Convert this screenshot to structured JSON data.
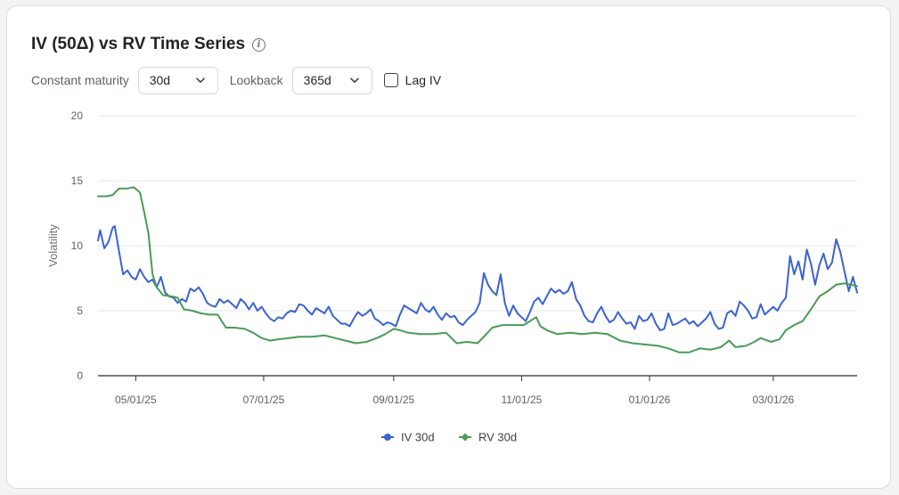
{
  "header": {
    "title": "IV (50Δ) vs RV Time Series",
    "info_icon": "info-icon"
  },
  "controls": {
    "maturity_label": "Constant maturity",
    "maturity_value": "30d",
    "lookback_label": "Lookback",
    "lookback_value": "365d",
    "lag_label": "Lag IV",
    "lag_checked": false
  },
  "chart_data": {
    "type": "line",
    "ylabel": "Volatility",
    "ylim": [
      0,
      20
    ],
    "yticks": [
      0,
      5,
      10,
      15,
      20
    ],
    "xlim": [
      "2025-04-13",
      "2026-04-10"
    ],
    "xticks": [
      {
        "label": "05/01/25",
        "date": "2025-05-01"
      },
      {
        "label": "07/01/25",
        "date": "2025-07-01"
      },
      {
        "label": "09/01/25",
        "date": "2025-09-01"
      },
      {
        "label": "11/01/25",
        "date": "2025-11-01"
      },
      {
        "label": "01/01/26",
        "date": "2026-01-01"
      },
      {
        "label": "03/01/26",
        "date": "2026-03-01"
      }
    ],
    "grid": true,
    "legend": "bottom-center",
    "series": [
      {
        "name": "IV 30d",
        "color": "#3a63d1",
        "points": [
          [
            "2025-04-13",
            10.4
          ],
          [
            "2025-04-14",
            11.2
          ],
          [
            "2025-04-16",
            9.8
          ],
          [
            "2025-04-18",
            10.3
          ],
          [
            "2025-04-20",
            11.4
          ],
          [
            "2025-04-21",
            11.5
          ],
          [
            "2025-04-23",
            9.6
          ],
          [
            "2025-04-25",
            7.8
          ],
          [
            "2025-04-27",
            8.1
          ],
          [
            "2025-04-29",
            7.6
          ],
          [
            "2025-05-01",
            7.4
          ],
          [
            "2025-05-03",
            8.2
          ],
          [
            "2025-05-05",
            7.6
          ],
          [
            "2025-05-07",
            7.2
          ],
          [
            "2025-05-09",
            7.4
          ],
          [
            "2025-05-11",
            6.8
          ],
          [
            "2025-05-13",
            7.6
          ],
          [
            "2025-05-15",
            6.4
          ],
          [
            "2025-05-17",
            6.1
          ],
          [
            "2025-05-19",
            6.0
          ],
          [
            "2025-05-21",
            5.6
          ],
          [
            "2025-05-23",
            5.9
          ],
          [
            "2025-05-25",
            5.7
          ],
          [
            "2025-05-27",
            6.7
          ],
          [
            "2025-05-29",
            6.5
          ],
          [
            "2025-05-31",
            6.8
          ],
          [
            "2025-06-02",
            6.3
          ],
          [
            "2025-06-04",
            5.6
          ],
          [
            "2025-06-06",
            5.4
          ],
          [
            "2025-06-08",
            5.3
          ],
          [
            "2025-06-10",
            5.9
          ],
          [
            "2025-06-12",
            5.6
          ],
          [
            "2025-06-14",
            5.8
          ],
          [
            "2025-06-16",
            5.5
          ],
          [
            "2025-06-18",
            5.2
          ],
          [
            "2025-06-20",
            5.9
          ],
          [
            "2025-06-22",
            5.6
          ],
          [
            "2025-06-24",
            5.1
          ],
          [
            "2025-06-26",
            5.6
          ],
          [
            "2025-06-28",
            5.0
          ],
          [
            "2025-06-30",
            5.3
          ],
          [
            "2025-07-02",
            4.8
          ],
          [
            "2025-07-04",
            4.4
          ],
          [
            "2025-07-06",
            4.2
          ],
          [
            "2025-07-08",
            4.5
          ],
          [
            "2025-07-10",
            4.4
          ],
          [
            "2025-07-12",
            4.8
          ],
          [
            "2025-07-14",
            5.0
          ],
          [
            "2025-07-16",
            4.9
          ],
          [
            "2025-07-18",
            5.5
          ],
          [
            "2025-07-20",
            5.4
          ],
          [
            "2025-07-22",
            5.0
          ],
          [
            "2025-07-24",
            4.7
          ],
          [
            "2025-07-26",
            5.2
          ],
          [
            "2025-07-28",
            5.0
          ],
          [
            "2025-07-30",
            4.8
          ],
          [
            "2025-08-01",
            5.3
          ],
          [
            "2025-08-03",
            4.6
          ],
          [
            "2025-08-05",
            4.3
          ],
          [
            "2025-08-07",
            4.0
          ],
          [
            "2025-08-09",
            4.0
          ],
          [
            "2025-08-11",
            3.8
          ],
          [
            "2025-08-13",
            4.4
          ],
          [
            "2025-08-15",
            4.9
          ],
          [
            "2025-08-17",
            4.6
          ],
          [
            "2025-08-19",
            4.8
          ],
          [
            "2025-08-21",
            5.1
          ],
          [
            "2025-08-23",
            4.4
          ],
          [
            "2025-08-25",
            4.2
          ],
          [
            "2025-08-27",
            3.9
          ],
          [
            "2025-08-29",
            4.1
          ],
          [
            "2025-08-31",
            4.0
          ],
          [
            "2025-09-02",
            3.8
          ],
          [
            "2025-09-04",
            4.7
          ],
          [
            "2025-09-06",
            5.4
          ],
          [
            "2025-09-08",
            5.2
          ],
          [
            "2025-09-10",
            5.0
          ],
          [
            "2025-09-12",
            4.8
          ],
          [
            "2025-09-14",
            5.6
          ],
          [
            "2025-09-16",
            5.1
          ],
          [
            "2025-09-18",
            4.9
          ],
          [
            "2025-09-20",
            5.3
          ],
          [
            "2025-09-22",
            4.7
          ],
          [
            "2025-09-24",
            4.3
          ],
          [
            "2025-09-26",
            4.8
          ],
          [
            "2025-09-28",
            4.5
          ],
          [
            "2025-09-30",
            4.6
          ],
          [
            "2025-10-02",
            4.1
          ],
          [
            "2025-10-04",
            3.9
          ],
          [
            "2025-10-06",
            4.3
          ],
          [
            "2025-10-08",
            4.6
          ],
          [
            "2025-10-10",
            4.9
          ],
          [
            "2025-10-12",
            5.6
          ],
          [
            "2025-10-14",
            7.9
          ],
          [
            "2025-10-16",
            7.0
          ],
          [
            "2025-10-18",
            6.5
          ],
          [
            "2025-10-20",
            6.2
          ],
          [
            "2025-10-22",
            7.8
          ],
          [
            "2025-10-24",
            5.6
          ],
          [
            "2025-10-26",
            4.6
          ],
          [
            "2025-10-28",
            5.4
          ],
          [
            "2025-10-30",
            4.8
          ],
          [
            "2025-11-01",
            4.5
          ],
          [
            "2025-11-03",
            4.2
          ],
          [
            "2025-11-05",
            4.9
          ],
          [
            "2025-11-07",
            5.7
          ],
          [
            "2025-11-09",
            6.0
          ],
          [
            "2025-11-11",
            5.5
          ],
          [
            "2025-11-13",
            6.1
          ],
          [
            "2025-11-15",
            6.7
          ],
          [
            "2025-11-17",
            6.4
          ],
          [
            "2025-11-19",
            6.6
          ],
          [
            "2025-11-21",
            6.3
          ],
          [
            "2025-11-23",
            6.5
          ],
          [
            "2025-11-25",
            7.2
          ],
          [
            "2025-11-27",
            5.9
          ],
          [
            "2025-11-29",
            5.4
          ],
          [
            "2025-12-01",
            4.6
          ],
          [
            "2025-12-03",
            4.2
          ],
          [
            "2025-12-05",
            4.1
          ],
          [
            "2025-12-07",
            4.8
          ],
          [
            "2025-12-09",
            5.3
          ],
          [
            "2025-12-11",
            4.6
          ],
          [
            "2025-12-13",
            4.1
          ],
          [
            "2025-12-15",
            4.3
          ],
          [
            "2025-12-17",
            4.9
          ],
          [
            "2025-12-19",
            4.4
          ],
          [
            "2025-12-21",
            4.0
          ],
          [
            "2025-12-23",
            4.1
          ],
          [
            "2025-12-25",
            3.6
          ],
          [
            "2025-12-27",
            4.6
          ],
          [
            "2025-12-29",
            4.2
          ],
          [
            "2025-12-31",
            4.3
          ],
          [
            "2026-01-02",
            4.8
          ],
          [
            "2026-01-04",
            4.0
          ],
          [
            "2026-01-06",
            3.5
          ],
          [
            "2026-01-08",
            3.6
          ],
          [
            "2026-01-10",
            4.8
          ],
          [
            "2026-01-12",
            3.9
          ],
          [
            "2026-01-14",
            4.0
          ],
          [
            "2026-01-16",
            4.2
          ],
          [
            "2026-01-18",
            4.4
          ],
          [
            "2026-01-20",
            4.0
          ],
          [
            "2026-01-22",
            4.2
          ],
          [
            "2026-01-24",
            3.8
          ],
          [
            "2026-01-26",
            4.1
          ],
          [
            "2026-01-28",
            4.4
          ],
          [
            "2026-01-30",
            4.9
          ],
          [
            "2026-02-01",
            4.0
          ],
          [
            "2026-02-03",
            3.6
          ],
          [
            "2026-02-05",
            3.7
          ],
          [
            "2026-02-07",
            4.8
          ],
          [
            "2026-02-09",
            5.0
          ],
          [
            "2026-02-11",
            4.6
          ],
          [
            "2026-02-13",
            5.7
          ],
          [
            "2026-02-15",
            5.4
          ],
          [
            "2026-02-17",
            5.0
          ],
          [
            "2026-02-19",
            4.4
          ],
          [
            "2026-02-21",
            4.5
          ],
          [
            "2026-02-23",
            5.5
          ],
          [
            "2026-02-25",
            4.7
          ],
          [
            "2026-02-27",
            5.0
          ],
          [
            "2026-03-01",
            5.3
          ],
          [
            "2026-03-03",
            5.0
          ],
          [
            "2026-03-05",
            5.6
          ],
          [
            "2026-03-07",
            6.0
          ],
          [
            "2026-03-09",
            9.2
          ],
          [
            "2026-03-11",
            7.8
          ],
          [
            "2026-03-13",
            8.8
          ],
          [
            "2026-03-15",
            7.4
          ],
          [
            "2026-03-17",
            9.7
          ],
          [
            "2026-03-19",
            8.6
          ],
          [
            "2026-03-21",
            7.0
          ],
          [
            "2026-03-23",
            8.5
          ],
          [
            "2026-03-25",
            9.4
          ],
          [
            "2026-03-27",
            8.2
          ],
          [
            "2026-03-29",
            8.7
          ],
          [
            "2026-03-31",
            10.5
          ],
          [
            "2026-04-02",
            9.5
          ],
          [
            "2026-04-04",
            8.0
          ],
          [
            "2026-04-06",
            6.5
          ],
          [
            "2026-04-08",
            7.6
          ],
          [
            "2026-04-10",
            6.4
          ]
        ]
      },
      {
        "name": "RV 30d",
        "color": "#4a9b57",
        "points": [
          [
            "2025-04-13",
            13.8
          ],
          [
            "2025-04-17",
            13.8
          ],
          [
            "2025-04-20",
            13.9
          ],
          [
            "2025-04-23",
            14.4
          ],
          [
            "2025-04-27",
            14.4
          ],
          [
            "2025-04-30",
            14.5
          ],
          [
            "2025-05-03",
            14.1
          ],
          [
            "2025-05-05",
            12.6
          ],
          [
            "2025-05-07",
            11.0
          ],
          [
            "2025-05-09",
            7.8
          ],
          [
            "2025-05-11",
            6.8
          ],
          [
            "2025-05-14",
            6.2
          ],
          [
            "2025-05-18",
            6.1
          ],
          [
            "2025-05-21",
            6.0
          ],
          [
            "2025-05-24",
            5.1
          ],
          [
            "2025-05-28",
            5.0
          ],
          [
            "2025-06-01",
            4.8
          ],
          [
            "2025-06-05",
            4.7
          ],
          [
            "2025-06-09",
            4.7
          ],
          [
            "2025-06-13",
            3.7
          ],
          [
            "2025-06-17",
            3.7
          ],
          [
            "2025-06-22",
            3.6
          ],
          [
            "2025-06-26",
            3.3
          ],
          [
            "2025-06-30",
            2.9
          ],
          [
            "2025-07-04",
            2.7
          ],
          [
            "2025-07-08",
            2.8
          ],
          [
            "2025-07-13",
            2.9
          ],
          [
            "2025-07-18",
            3.0
          ],
          [
            "2025-07-24",
            3.0
          ],
          [
            "2025-07-30",
            3.1
          ],
          [
            "2025-08-04",
            2.9
          ],
          [
            "2025-08-09",
            2.7
          ],
          [
            "2025-08-14",
            2.5
          ],
          [
            "2025-08-19",
            2.6
          ],
          [
            "2025-08-24",
            2.9
          ],
          [
            "2025-08-28",
            3.2
          ],
          [
            "2025-09-01",
            3.6
          ],
          [
            "2025-09-04",
            3.5
          ],
          [
            "2025-09-08",
            3.3
          ],
          [
            "2025-09-14",
            3.2
          ],
          [
            "2025-09-20",
            3.2
          ],
          [
            "2025-09-26",
            3.3
          ],
          [
            "2025-10-01",
            2.5
          ],
          [
            "2025-10-06",
            2.6
          ],
          [
            "2025-10-11",
            2.5
          ],
          [
            "2025-10-14",
            3.0
          ],
          [
            "2025-10-18",
            3.7
          ],
          [
            "2025-10-23",
            3.9
          ],
          [
            "2025-10-28",
            3.9
          ],
          [
            "2025-11-02",
            3.9
          ],
          [
            "2025-11-06",
            4.3
          ],
          [
            "2025-11-08",
            4.5
          ],
          [
            "2025-11-10",
            3.8
          ],
          [
            "2025-11-13",
            3.5
          ],
          [
            "2025-11-18",
            3.2
          ],
          [
            "2025-11-24",
            3.3
          ],
          [
            "2025-11-30",
            3.2
          ],
          [
            "2025-12-06",
            3.3
          ],
          [
            "2025-12-12",
            3.2
          ],
          [
            "2025-12-18",
            2.7
          ],
          [
            "2025-12-24",
            2.5
          ],
          [
            "2025-12-30",
            2.4
          ],
          [
            "2026-01-05",
            2.3
          ],
          [
            "2026-01-10",
            2.1
          ],
          [
            "2026-01-15",
            1.8
          ],
          [
            "2026-01-20",
            1.8
          ],
          [
            "2026-01-25",
            2.1
          ],
          [
            "2026-01-30",
            2.0
          ],
          [
            "2026-02-04",
            2.2
          ],
          [
            "2026-02-08",
            2.7
          ],
          [
            "2026-02-11",
            2.2
          ],
          [
            "2026-02-16",
            2.3
          ],
          [
            "2026-02-20",
            2.6
          ],
          [
            "2026-02-23",
            2.9
          ],
          [
            "2026-02-28",
            2.6
          ],
          [
            "2026-03-04",
            2.8
          ],
          [
            "2026-03-07",
            3.5
          ],
          [
            "2026-03-11",
            3.9
          ],
          [
            "2026-03-15",
            4.2
          ],
          [
            "2026-03-19",
            5.1
          ],
          [
            "2026-03-23",
            6.1
          ],
          [
            "2026-03-27",
            6.5
          ],
          [
            "2026-03-31",
            7.0
          ],
          [
            "2026-04-04",
            7.1
          ],
          [
            "2026-04-10",
            6.9
          ]
        ]
      }
    ]
  }
}
